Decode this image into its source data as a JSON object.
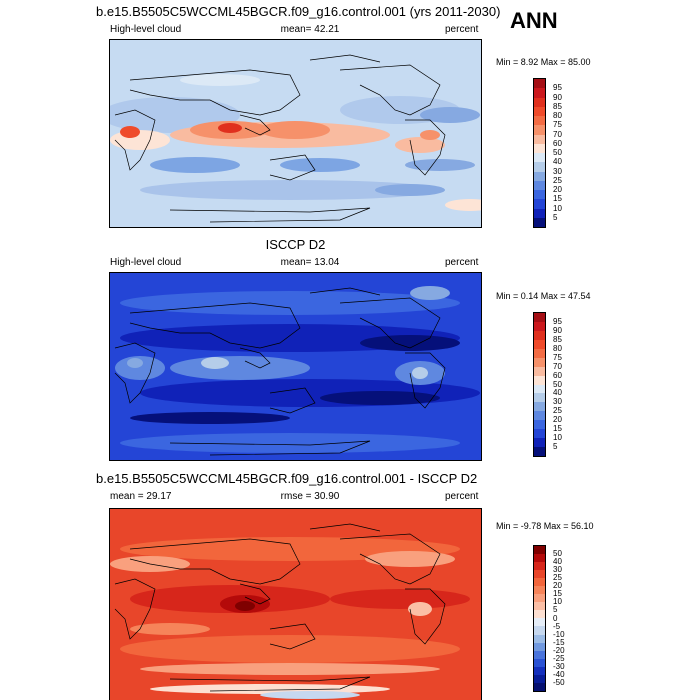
{
  "season": "ANN",
  "chart_data": [
    {
      "type": "heatmap",
      "title": "b.e15.B5505C5WCCML45BGCR.f09_g16.control.001 (yrs 2011-2030)",
      "left_label": "High-level cloud",
      "center_label": "mean=  42.21",
      "right_label": "percent",
      "minmax": "Min =   8.92 Max =  85.00",
      "mean": 42.21,
      "min": 8.92,
      "max": 85.0,
      "levels": [
        "95",
        "90",
        "85",
        "80",
        "75",
        "70",
        "60",
        "50",
        "40",
        "30",
        "25",
        "20",
        "15",
        "10",
        "5"
      ],
      "colors": [
        "#a50f15",
        "#cb181d",
        "#e0301e",
        "#ef4b2b",
        "#f36c44",
        "#f6916a",
        "#f9bba0",
        "#fde4d6",
        "#dce9f6",
        "#b5cde9",
        "#86a9e1",
        "#5f88e0",
        "#3b66e0",
        "#2445d6",
        "#1022b8",
        "#05107a"
      ],
      "background": "#c6dbf2"
    },
    {
      "type": "heatmap",
      "title": "ISCCP D2",
      "left_label": "High-level cloud",
      "center_label": "mean=  13.04",
      "right_label": "percent",
      "minmax": "Min =   0.14 Max =  47.54",
      "mean": 13.04,
      "min": 0.14,
      "max": 47.54,
      "levels": [
        "95",
        "90",
        "85",
        "80",
        "75",
        "70",
        "60",
        "50",
        "40",
        "30",
        "25",
        "20",
        "15",
        "10",
        "5"
      ],
      "colors": [
        "#a50f15",
        "#cb181d",
        "#e0301e",
        "#ef4b2b",
        "#f36c44",
        "#f6916a",
        "#f9bba0",
        "#fde4d6",
        "#dce9f6",
        "#b5cde9",
        "#86a9e1",
        "#5f88e0",
        "#3b66e0",
        "#2445d6",
        "#1022b8",
        "#05107a"
      ],
      "background": "#1a33c9"
    },
    {
      "type": "heatmap",
      "title": "b.e15.B5505C5WCCML45BGCR.f09_g16.control.001 - ISCCP D2",
      "left_label": "mean =  29.17",
      "center_label": "rmse =  30.90",
      "right_label": "percent",
      "minmax": "Min =  -9.78 Max =  56.10",
      "mean": 29.17,
      "rmse": 30.9,
      "min": -9.78,
      "max": 56.1,
      "levels": [
        "50",
        "40",
        "30",
        "25",
        "20",
        "15",
        "10",
        "5",
        "0",
        "-5",
        "-10",
        "-15",
        "-20",
        "-25",
        "-30",
        "-40",
        "-50"
      ],
      "colors": [
        "#7f0000",
        "#b40a0a",
        "#d7261b",
        "#e8462a",
        "#f2663c",
        "#f6845a",
        "#f9a07e",
        "#fbbfa6",
        "#fde0d2",
        "#e6eef8",
        "#c6d8ef",
        "#9cbce6",
        "#7199df",
        "#4a74dc",
        "#2a52d4",
        "#1430bd",
        "#081d98",
        "#051070"
      ],
      "background": "#e64a2a"
    }
  ]
}
